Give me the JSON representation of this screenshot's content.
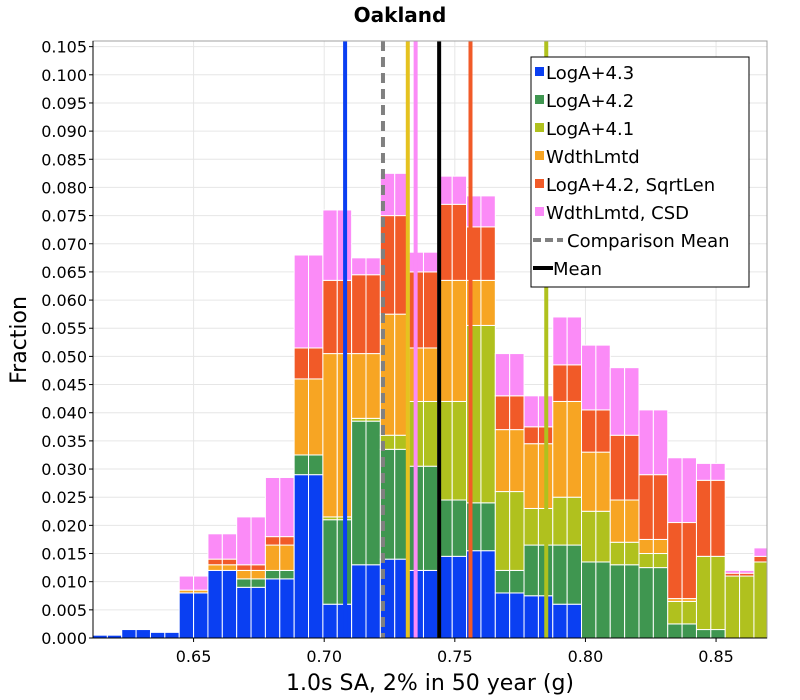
{
  "chart_data": {
    "type": "bar",
    "stacked": true,
    "title": "Oakland",
    "xlabel": "1.0s SA, 2% in 50 year (g)",
    "ylabel": "Fraction",
    "xlim": [
      0.6115,
      0.8695
    ],
    "ylim": [
      0,
      0.106
    ],
    "bin_width": 0.0055,
    "x_ticks": [
      0.65,
      0.7,
      0.75,
      0.8,
      0.85
    ],
    "x_tick_labels": [
      "0.65",
      "0.70",
      "0.75",
      "0.80",
      "0.85"
    ],
    "y_ticks": [
      0,
      0.005,
      0.01,
      0.015,
      0.02,
      0.025,
      0.03,
      0.035,
      0.04,
      0.045,
      0.05,
      0.055,
      0.06,
      0.065,
      0.07,
      0.075,
      0.08,
      0.085,
      0.09,
      0.095,
      0.1,
      0.105
    ],
    "y_tick_labels": [
      "0.000",
      "0.005",
      "0.010",
      "0.015",
      "0.020",
      "0.025",
      "0.030",
      "0.035",
      "0.040",
      "0.045",
      "0.050",
      "0.055",
      "0.060",
      "0.065",
      "0.070",
      "0.075",
      "0.080",
      "0.085",
      "0.090",
      "0.095",
      "0.100",
      "0.105"
    ],
    "x": [
      0.6115,
      0.617,
      0.6225,
      0.628,
      0.6335,
      0.639,
      0.6445,
      0.65,
      0.6555,
      0.661,
      0.6665,
      0.672,
      0.6775,
      0.683,
      0.6885,
      0.694,
      0.6995,
      0.705,
      0.7105,
      0.716,
      0.7215,
      0.727,
      0.7325,
      0.738,
      0.7435,
      0.749,
      0.7545,
      0.76,
      0.7655,
      0.771,
      0.7765,
      0.782,
      0.7875,
      0.793,
      0.7985,
      0.804,
      0.8095,
      0.815,
      0.8205,
      0.826,
      0.8315,
      0.837,
      0.8425,
      0.848,
      0.8535,
      0.859,
      0.8645
    ],
    "series": [
      {
        "name": "LogA+4.3",
        "color": "#0a3ff2",
        "values": [
          0.0005,
          0.0005,
          0.0015,
          0.0015,
          0.001,
          0.001,
          0.008,
          0.008,
          0.012,
          0.012,
          0.009,
          0.009,
          0.0105,
          0.0105,
          0.029,
          0.029,
          0.006,
          0.006,
          0.013,
          0.013,
          0.014,
          0.014,
          0.012,
          0.012,
          0.0145,
          0.0145,
          0.0155,
          0.0155,
          0.008,
          0.008,
          0.0075,
          0.0075,
          0.006,
          0.006,
          0,
          0,
          0,
          0,
          0,
          0,
          0,
          0,
          0,
          0,
          0,
          0,
          0
        ]
      },
      {
        "name": "LogA+4.2",
        "color": "#3f9650",
        "values": [
          0,
          0,
          0,
          0,
          0,
          0,
          0,
          0,
          0,
          0,
          0.0015,
          0.0015,
          0.0015,
          0.0015,
          0.0035,
          0.0035,
          0.015,
          0.015,
          0.0255,
          0.0255,
          0.0195,
          0.0195,
          0.0185,
          0.0185,
          0.01,
          0.01,
          0.0085,
          0.0085,
          0.004,
          0.004,
          0.009,
          0.009,
          0.0105,
          0.0105,
          0.0135,
          0.0135,
          0.013,
          0.013,
          0.0125,
          0.0125,
          0.0025,
          0.0025,
          0.0015,
          0.0015,
          0,
          0,
          0
        ]
      },
      {
        "name": "LogA+4.1",
        "color": "#b0c11e",
        "values": [
          0,
          0,
          0,
          0,
          0,
          0,
          0,
          0,
          0,
          0,
          0,
          0,
          0,
          0,
          0,
          0,
          0.0005,
          0.0005,
          0.0005,
          0.0005,
          0.0025,
          0.0025,
          0.0115,
          0.0115,
          0.0175,
          0.0175,
          0.0315,
          0.0315,
          0.014,
          0.014,
          0.0065,
          0.0065,
          0.0085,
          0.0085,
          0.009,
          0.009,
          0.004,
          0.004,
          0.0025,
          0.0025,
          0.004,
          0.004,
          0.013,
          0.013,
          0.011,
          0.011,
          0.0135
        ]
      },
      {
        "name": "WdthLmtd",
        "color": "#f7a523",
        "values": [
          0,
          0,
          0,
          0,
          0,
          0,
          0.0005,
          0.0005,
          0.001,
          0.001,
          0.0015,
          0.0015,
          0.0045,
          0.0045,
          0.0135,
          0.0135,
          0.029,
          0.029,
          0.0115,
          0.0115,
          0.0215,
          0.0215,
          0.0095,
          0.0095,
          0.0215,
          0.0215,
          0.008,
          0.008,
          0.011,
          0.011,
          0.0115,
          0.0115,
          0.017,
          0.017,
          0.0105,
          0.0105,
          0.0075,
          0.0075,
          0.0025,
          0.0025,
          0.0005,
          0.0005,
          0,
          0,
          0,
          0,
          0
        ]
      },
      {
        "name": "LogA+4.2, SqrtLen",
        "color": "#f15a28",
        "values": [
          0,
          0,
          0,
          0,
          0,
          0,
          0,
          0,
          0.001,
          0.001,
          0.001,
          0.001,
          0.0015,
          0.0015,
          0.0055,
          0.0055,
          0.013,
          0.013,
          0.014,
          0.014,
          0.0175,
          0.0175,
          0.0135,
          0.0135,
          0.0135,
          0.0135,
          0.0095,
          0.0095,
          0.006,
          0.006,
          0.003,
          0.003,
          0.0065,
          0.0065,
          0.0075,
          0.0075,
          0.0115,
          0.0115,
          0.0115,
          0.0115,
          0.0135,
          0.0135,
          0.0135,
          0.0135,
          0.0005,
          0.0005,
          0.001
        ]
      },
      {
        "name": "WdthLmtd, CSD",
        "color": "#fb8bf7",
        "values": [
          0,
          0,
          0,
          0,
          0,
          0,
          0.0025,
          0.0025,
          0.0045,
          0.0045,
          0.0085,
          0.0085,
          0.0105,
          0.0105,
          0.0165,
          0.0165,
          0.0125,
          0.0125,
          0.003,
          0.003,
          0.0075,
          0.0075,
          0.0035,
          0.0035,
          0.005,
          0.005,
          0.0055,
          0.0055,
          0.0075,
          0.0075,
          0.0055,
          0.0055,
          0.0085,
          0.0085,
          0.0115,
          0.0115,
          0.012,
          0.012,
          0.0115,
          0.0115,
          0.0115,
          0.0115,
          0.003,
          0.003,
          0.0005,
          0.0005,
          0.0015
        ]
      }
    ],
    "lines": [
      {
        "name": "LogA+4.3",
        "x": 0.708,
        "color": "#0a3ff2",
        "style": "solid"
      },
      {
        "name": "LogA+4.1",
        "x": 0.732,
        "color": "#e5c21f",
        "style": "solid"
      },
      {
        "name": "WdthLmtd, CSD",
        "x": 0.735,
        "color": "#fb8bf7",
        "style": "solid"
      },
      {
        "name": "LogA+4.2, SqrtLen",
        "x": 0.756,
        "color": "#f15a28",
        "style": "solid"
      },
      {
        "name": "LogA+4.1",
        "x": 0.785,
        "color": "#b0c11e",
        "style": "solid"
      },
      {
        "name": "Comparison Mean",
        "x": 0.7225,
        "color": "#808080",
        "style": "dashed"
      },
      {
        "name": "Mean",
        "x": 0.744,
        "color": "#000000",
        "style": "solid"
      }
    ],
    "legend": {
      "position": "top-right",
      "entries": [
        {
          "label": "LogA+4.3",
          "color": "#0a3ff2",
          "kind": "box"
        },
        {
          "label": "LogA+4.2",
          "color": "#3f9650",
          "kind": "box"
        },
        {
          "label": "LogA+4.1",
          "color": "#b0c11e",
          "kind": "box"
        },
        {
          "label": "WdthLmtd",
          "color": "#f7a523",
          "kind": "box"
        },
        {
          "label": "LogA+4.2, SqrtLen",
          "color": "#f15a28",
          "kind": "box"
        },
        {
          "label": "WdthLmtd, CSD",
          "color": "#fb8bf7",
          "kind": "box"
        },
        {
          "label": "Comparison Mean",
          "color": "#808080",
          "kind": "dashed"
        },
        {
          "label": "Mean",
          "color": "#000000",
          "kind": "line"
        }
      ]
    }
  }
}
